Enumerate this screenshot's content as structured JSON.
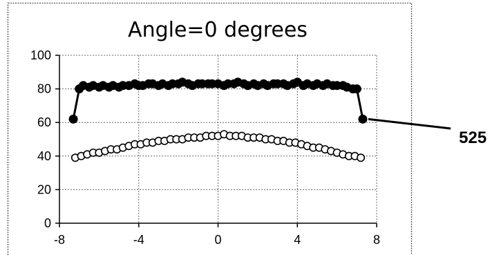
{
  "chart_data": {
    "type": "line",
    "title": "Angle=0 degrees",
    "xlabel": "",
    "ylabel": "",
    "xlim": [
      -8,
      8
    ],
    "ylim": [
      0,
      100
    ],
    "x_ticks": [
      -8,
      -4,
      0,
      4,
      8
    ],
    "y_ticks": [
      0,
      20,
      40,
      60,
      80,
      100
    ],
    "x_tick_labels": [
      "-8",
      "-4",
      "0",
      "4",
      "8"
    ],
    "y_tick_labels": [
      "0",
      "20",
      "40",
      "60",
      "80",
      "100"
    ],
    "grid": true,
    "legend": "none",
    "annotation": {
      "label": "525",
      "target_series": 0,
      "target_point": "last"
    },
    "series": [
      {
        "marker": "filled-circle",
        "color": "#000000",
        "points": [
          [
            -7.3,
            62
          ],
          [
            -7.0,
            80
          ],
          [
            -6.8,
            82
          ],
          [
            -6.5,
            81
          ],
          [
            -6.3,
            82
          ],
          [
            -6.0,
            81
          ],
          [
            -5.8,
            82
          ],
          [
            -5.5,
            81
          ],
          [
            -5.3,
            82
          ],
          [
            -5.0,
            81
          ],
          [
            -4.8,
            82
          ],
          [
            -4.5,
            82
          ],
          [
            -4.2,
            83
          ],
          [
            -4.0,
            82
          ],
          [
            -3.8,
            82
          ],
          [
            -3.5,
            83
          ],
          [
            -3.3,
            83
          ],
          [
            -3.0,
            82
          ],
          [
            -2.8,
            83
          ],
          [
            -2.5,
            82
          ],
          [
            -2.3,
            83
          ],
          [
            -2.0,
            83
          ],
          [
            -1.8,
            84
          ],
          [
            -1.5,
            83
          ],
          [
            -1.3,
            82
          ],
          [
            -1.0,
            83
          ],
          [
            -0.8,
            83
          ],
          [
            -0.5,
            83
          ],
          [
            -0.3,
            83
          ],
          [
            0.0,
            83
          ],
          [
            0.3,
            82
          ],
          [
            0.5,
            83
          ],
          [
            0.8,
            83
          ],
          [
            1.0,
            84
          ],
          [
            1.3,
            83
          ],
          [
            1.5,
            82
          ],
          [
            1.8,
            83
          ],
          [
            2.0,
            82
          ],
          [
            2.3,
            83
          ],
          [
            2.5,
            82
          ],
          [
            2.8,
            83
          ],
          [
            3.0,
            83
          ],
          [
            3.3,
            83
          ],
          [
            3.5,
            82
          ],
          [
            3.8,
            83
          ],
          [
            4.0,
            84
          ],
          [
            4.3,
            82
          ],
          [
            4.5,
            83
          ],
          [
            4.8,
            82
          ],
          [
            5.0,
            83
          ],
          [
            5.3,
            82
          ],
          [
            5.5,
            83
          ],
          [
            5.8,
            82
          ],
          [
            6.0,
            82
          ],
          [
            6.3,
            82
          ],
          [
            6.5,
            81
          ],
          [
            6.8,
            80
          ],
          [
            7.0,
            80
          ],
          [
            7.3,
            62
          ]
        ]
      },
      {
        "marker": "open-circle",
        "color": "#000000",
        "points": [
          [
            -7.2,
            39
          ],
          [
            -6.9,
            40
          ],
          [
            -6.6,
            41
          ],
          [
            -6.3,
            42
          ],
          [
            -6.0,
            42
          ],
          [
            -5.7,
            43
          ],
          [
            -5.4,
            44
          ],
          [
            -5.1,
            44
          ],
          [
            -4.8,
            45
          ],
          [
            -4.5,
            46
          ],
          [
            -4.2,
            47
          ],
          [
            -3.9,
            47
          ],
          [
            -3.6,
            48
          ],
          [
            -3.3,
            48
          ],
          [
            -3.0,
            49
          ],
          [
            -2.7,
            49
          ],
          [
            -2.4,
            50
          ],
          [
            -2.1,
            50
          ],
          [
            -1.8,
            50
          ],
          [
            -1.5,
            51
          ],
          [
            -1.2,
            51
          ],
          [
            -0.9,
            51
          ],
          [
            -0.6,
            52
          ],
          [
            -0.3,
            52
          ],
          [
            0.0,
            52
          ],
          [
            0.3,
            53
          ],
          [
            0.6,
            52
          ],
          [
            0.9,
            52
          ],
          [
            1.2,
            52
          ],
          [
            1.5,
            51
          ],
          [
            1.8,
            51
          ],
          [
            2.1,
            51
          ],
          [
            2.4,
            50
          ],
          [
            2.7,
            50
          ],
          [
            3.0,
            49
          ],
          [
            3.3,
            49
          ],
          [
            3.6,
            48
          ],
          [
            3.9,
            48
          ],
          [
            4.2,
            47
          ],
          [
            4.5,
            46
          ],
          [
            4.8,
            45
          ],
          [
            5.1,
            45
          ],
          [
            5.4,
            44
          ],
          [
            5.7,
            43
          ],
          [
            6.0,
            42
          ],
          [
            6.3,
            41
          ],
          [
            6.6,
            40
          ],
          [
            6.9,
            40
          ],
          [
            7.2,
            39
          ]
        ]
      }
    ]
  }
}
